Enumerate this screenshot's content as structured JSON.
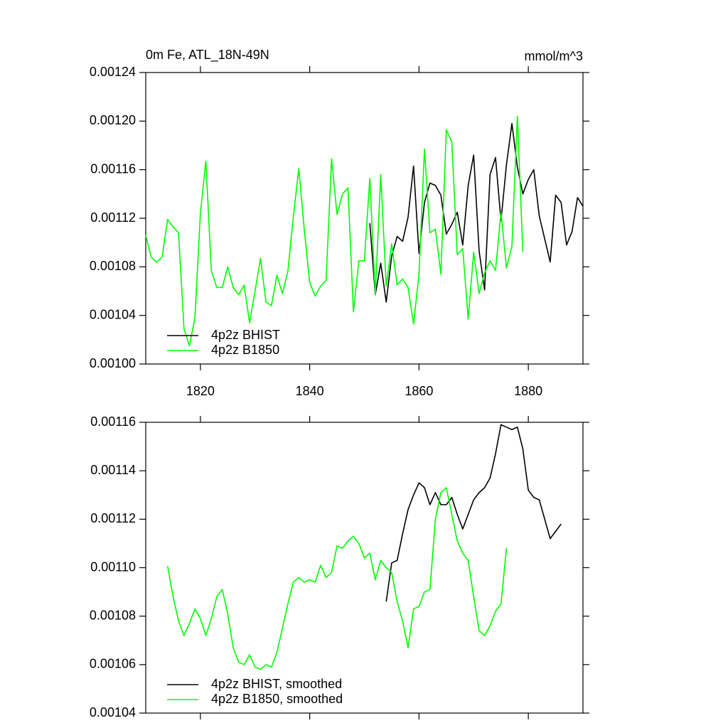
{
  "chart_data": [
    {
      "type": "line",
      "title": "0m Fe, ATL_18N-49N",
      "units": "mmol/m^3",
      "x": [
        1810,
        1811,
        1812,
        1813,
        1814,
        1815,
        1816,
        1817,
        1818,
        1819,
        1820,
        1821,
        1822,
        1823,
        1824,
        1825,
        1826,
        1827,
        1828,
        1829,
        1830,
        1831,
        1832,
        1833,
        1834,
        1835,
        1836,
        1837,
        1838,
        1839,
        1840,
        1841,
        1842,
        1843,
        1844,
        1845,
        1846,
        1847,
        1848,
        1849,
        1850,
        1851,
        1852,
        1853,
        1854,
        1855,
        1856,
        1857,
        1858,
        1859,
        1860,
        1861,
        1862,
        1863,
        1864,
        1865,
        1866,
        1867,
        1868,
        1869,
        1870,
        1871,
        1872,
        1873,
        1874,
        1875,
        1876,
        1877,
        1878,
        1879,
        1880,
        1881,
        1882,
        1883,
        1884,
        1885,
        1886,
        1887,
        1888,
        1889,
        1890
      ],
      "series": [
        {
          "name": "4p2z BHIST",
          "color": "#000000",
          "values": [
            null,
            null,
            null,
            null,
            null,
            null,
            null,
            null,
            null,
            null,
            null,
            null,
            null,
            null,
            null,
            null,
            null,
            null,
            null,
            null,
            null,
            null,
            null,
            null,
            null,
            null,
            null,
            null,
            null,
            null,
            null,
            null,
            null,
            null,
            null,
            null,
            null,
            null,
            null,
            null,
            null,
            0.001116,
            0.001057,
            0.001083,
            0.001051,
            0.001089,
            0.001105,
            0.001101,
            0.001121,
            0.001163,
            0.001091,
            0.001133,
            0.001149,
            0.001147,
            0.001139,
            0.001107,
            0.001115,
            0.001125,
            0.001098,
            0.001147,
            0.001172,
            0.001093,
            0.001061,
            0.001156,
            0.00117,
            0.001118,
            0.001164,
            0.001198,
            0.001162,
            0.00114,
            0.001152,
            0.00116,
            0.001122,
            0.001103,
            0.001084,
            0.001139,
            0.001133,
            0.001098,
            0.001109,
            0.001137,
            0.00113
          ]
        },
        {
          "name": "4p2z B1850",
          "color": "#00ff00",
          "values": [
            0.001106,
            0.001088,
            0.001084,
            0.001088,
            0.001119,
            0.001113,
            0.001108,
            0.001029,
            0.001015,
            0.001038,
            0.001124,
            0.001167,
            0.001077,
            0.001063,
            0.001063,
            0.00108,
            0.001063,
            0.001057,
            0.001065,
            0.001034,
            0.00106,
            0.001087,
            0.001051,
            0.001048,
            0.001073,
            0.001058,
            0.001076,
            0.001121,
            0.001161,
            0.001111,
            0.001067,
            0.001056,
            0.001064,
            0.001069,
            0.001169,
            0.001123,
            0.00114,
            0.001145,
            0.001043,
            0.001085,
            0.001085,
            0.001153,
            0.001057,
            0.001156,
            0.001064,
            0.001099,
            0.001065,
            0.00107,
            0.001063,
            0.001033,
            0.001074,
            0.001177,
            0.001108,
            0.001111,
            0.001074,
            0.001193,
            0.001183,
            0.00109,
            0.001095,
            0.001037,
            0.001092,
            0.001058,
            0.001075,
            0.001085,
            0.001077,
            0.001125,
            0.001079,
            0.001097,
            0.001204,
            0.001092,
            null,
            null,
            null,
            null,
            null,
            null,
            null,
            null,
            null,
            null,
            null
          ]
        }
      ],
      "xlim": [
        1810,
        1890
      ],
      "xticks": [
        1820,
        1840,
        1860,
        1880
      ],
      "ylim": [
        0.001,
        0.00124
      ],
      "yticks": [
        {
          "value": 0.001,
          "label": "0.00100"
        },
        {
          "value": 0.00104,
          "label": "0.00104"
        },
        {
          "value": 0.00108,
          "label": "0.00108"
        },
        {
          "value": 0.00112,
          "label": "0.00112"
        },
        {
          "value": 0.00116,
          "label": "0.00116"
        },
        {
          "value": 0.0012,
          "label": "0.00120"
        },
        {
          "value": 0.00124,
          "label": "0.00124"
        }
      ],
      "legend": "lower left"
    },
    {
      "type": "line",
      "x": [
        1814,
        1815,
        1816,
        1817,
        1818,
        1819,
        1820,
        1821,
        1822,
        1823,
        1824,
        1825,
        1826,
        1827,
        1828,
        1829,
        1830,
        1831,
        1832,
        1833,
        1834,
        1835,
        1836,
        1837,
        1838,
        1839,
        1840,
        1841,
        1842,
        1843,
        1844,
        1845,
        1846,
        1847,
        1848,
        1849,
        1850,
        1851,
        1852,
        1853,
        1854,
        1855,
        1856,
        1857,
        1858,
        1859,
        1860,
        1861,
        1862,
        1863,
        1864,
        1865,
        1866,
        1867,
        1868,
        1869,
        1870,
        1871,
        1872,
        1873,
        1874,
        1875,
        1876,
        1877,
        1878,
        1879,
        1880,
        1881,
        1882,
        1883,
        1884,
        1885,
        1886
      ],
      "series": [
        {
          "name": "4p2z BHIST, smoothed",
          "color": "#000000",
          "values": [
            null,
            null,
            null,
            null,
            null,
            null,
            null,
            null,
            null,
            null,
            null,
            null,
            null,
            null,
            null,
            null,
            null,
            null,
            null,
            null,
            null,
            null,
            null,
            null,
            null,
            null,
            null,
            null,
            null,
            null,
            null,
            null,
            null,
            null,
            null,
            null,
            null,
            null,
            null,
            null,
            0.001086,
            0.001102,
            0.001103,
            0.001114,
            0.001124,
            0.00113,
            0.001135,
            0.001133,
            0.001126,
            0.001131,
            0.001126,
            0.001126,
            0.001129,
            0.001122,
            0.001116,
            0.001122,
            0.001128,
            0.001131,
            0.001133,
            0.001137,
            0.001147,
            0.001159,
            0.001158,
            0.001157,
            0.001158,
            0.001149,
            0.001132,
            0.001129,
            0.001128,
            0.00112,
            0.001112,
            0.001115,
            0.001118
          ]
        },
        {
          "name": "4p2z B1850, smoothed",
          "color": "#00ff00",
          "values": [
            0.0011007,
            0.001088,
            0.001078,
            0.001072,
            0.001077,
            0.001083,
            0.001079,
            0.001072,
            0.001079,
            0.001088,
            0.001091,
            0.001081,
            0.001067,
            0.001061,
            0.00106,
            0.001064,
            0.001059,
            0.001058,
            0.00106,
            0.001059,
            0.001065,
            0.001075,
            0.001085,
            0.001094,
            0.001096,
            0.001094,
            0.001095,
            0.001094,
            0.001101,
            0.001096,
            0.001098,
            0.001109,
            0.001108,
            0.001111,
            0.001113,
            0.00111,
            0.001104,
            0.001106,
            0.001095,
            0.001103,
            0.0011,
            0.001098,
            0.001086,
            0.001078,
            0.001067,
            0.001083,
            0.001084,
            0.00109,
            0.001091,
            0.00112,
            0.001131,
            0.001133,
            0.001122,
            0.001111,
            0.001106,
            0.001103,
            0.001088,
            0.001074,
            0.001072,
            0.001076,
            0.001082,
            0.001085,
            0.001108,
            null,
            null,
            null,
            null,
            null,
            null,
            null,
            null,
            null,
            null
          ]
        }
      ],
      "xlim": [
        1810,
        1890
      ],
      "ylim": [
        0.00104,
        0.00116
      ],
      "yticks": [
        {
          "value": 0.00104,
          "label": "0.00104"
        },
        {
          "value": 0.00106,
          "label": "0.00106"
        },
        {
          "value": 0.00108,
          "label": "0.00108"
        },
        {
          "value": 0.0011,
          "label": "0.00110"
        },
        {
          "value": 0.00112,
          "label": "0.00112"
        },
        {
          "value": 0.00114,
          "label": "0.00114"
        },
        {
          "value": 0.00116,
          "label": "0.00116"
        }
      ],
      "legend": "lower left"
    }
  ]
}
